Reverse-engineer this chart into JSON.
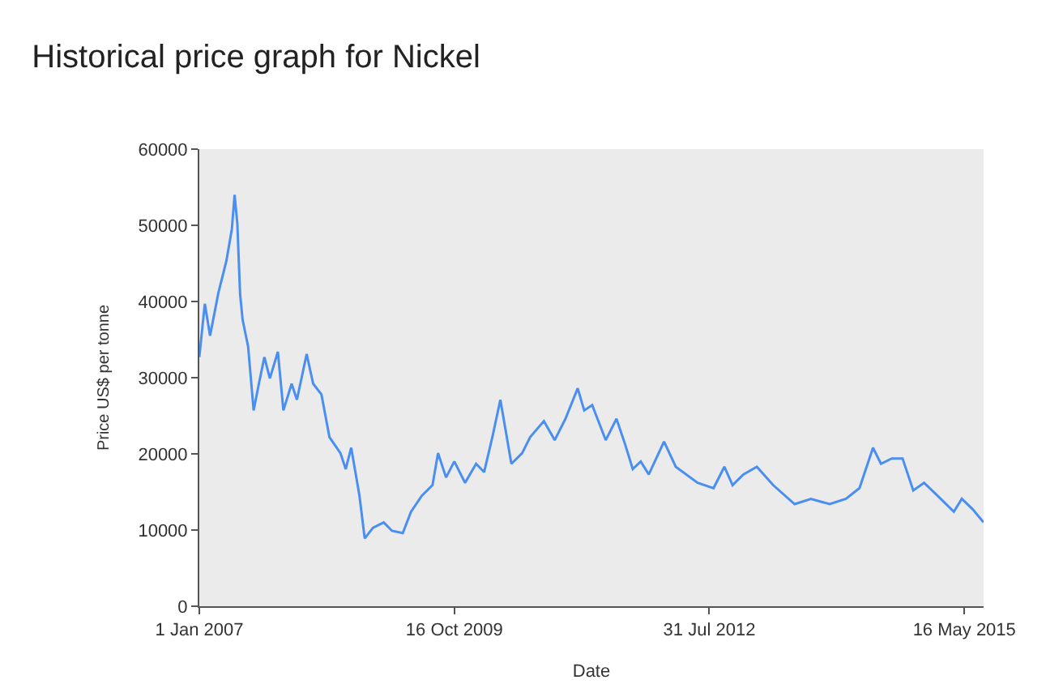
{
  "chart_data": {
    "type": "line",
    "title": "Historical price graph for Nickel",
    "xlabel": "Date",
    "ylabel": "Price US$ per tonne",
    "x": [
      "2007-01-01",
      "2007-01-23",
      "2007-02-13",
      "2007-03-18",
      "2007-04-19",
      "2007-05-11",
      "2007-05-22",
      "2007-06-02",
      "2007-06-13",
      "2007-06-23",
      "2007-07-15",
      "2007-08-06",
      "2007-08-27",
      "2007-09-18",
      "2007-10-10",
      "2007-11-11",
      "2007-12-03",
      "2008-01-05",
      "2008-01-26",
      "2008-03-05",
      "2008-03-31",
      "2008-05-03",
      "2008-06-04",
      "2008-07-18",
      "2008-08-08",
      "2008-08-30",
      "2008-10-02",
      "2008-10-23",
      "2008-11-25",
      "2009-01-07",
      "2009-02-09",
      "2009-03-24",
      "2009-04-26",
      "2009-06-08",
      "2009-07-21",
      "2009-08-12",
      "2009-09-13",
      "2009-10-16",
      "2009-11-28",
      "2010-01-11",
      "2010-02-12",
      "2010-03-17",
      "2010-04-18",
      "2010-06-01",
      "2010-07-14",
      "2010-08-15",
      "2010-10-09",
      "2010-11-21",
      "2011-01-03",
      "2011-02-21",
      "2011-03-19",
      "2011-04-20",
      "2011-06-13",
      "2011-07-26",
      "2011-08-27",
      "2011-09-29",
      "2011-10-31",
      "2011-12-02",
      "2012-02-01",
      "2012-03-19",
      "2012-06-14",
      "2012-08-17",
      "2012-09-29",
      "2012-11-01",
      "2012-12-14",
      "2013-02-06",
      "2013-04-12",
      "2013-07-07",
      "2013-09-10",
      "2013-11-24",
      "2014-01-28",
      "2014-03-23",
      "2014-05-16",
      "2014-06-17",
      "2014-07-30",
      "2014-09-11",
      "2014-10-24",
      "2014-12-06",
      "2015-01-29",
      "2015-04-04",
      "2015-05-06",
      "2015-06-19",
      "2015-08-01"
    ],
    "series": [
      {
        "color": "#4a8ff0",
        "values": [
          32700,
          39700,
          35500,
          41100,
          45300,
          49500,
          54000,
          50200,
          41000,
          37600,
          34100,
          25700,
          29200,
          32700,
          29900,
          33400,
          25700,
          29200,
          27100,
          33100,
          29200,
          27800,
          22200,
          20100,
          18000,
          20800,
          14500,
          8900,
          10300,
          11000,
          9900,
          9600,
          12400,
          14500,
          15900,
          20100,
          16900,
          19000,
          16200,
          18700,
          17600,
          22200,
          27100,
          18700,
          20100,
          22200,
          24300,
          21800,
          24600,
          28600,
          25700,
          26400,
          21800,
          24600,
          21500,
          18000,
          19000,
          17300,
          21600,
          18300,
          16200,
          15500,
          18300,
          15900,
          17300,
          18300,
          15900,
          13400,
          14100,
          13400,
          14100,
          15500,
          20800,
          18700,
          19400,
          19400,
          15200,
          16200,
          14500,
          12400,
          14100,
          12700,
          11000
        ]
      }
    ],
    "xlim": [
      "2007-01-01",
      "2015-08-01"
    ],
    "xticks": [
      {
        "value": "2007-01-01",
        "label": "1 Jan 2007"
      },
      {
        "value": "2009-10-16",
        "label": "16 Oct 2009"
      },
      {
        "value": "2012-07-31",
        "label": "31 Jul 2012"
      },
      {
        "value": "2015-05-16",
        "label": "16 May 2015"
      }
    ],
    "ylim": [
      0,
      60000
    ],
    "yticks": [
      0,
      10000,
      20000,
      30000,
      40000,
      50000,
      60000
    ],
    "grid": false,
    "marker": "none",
    "line_style": "solid"
  }
}
